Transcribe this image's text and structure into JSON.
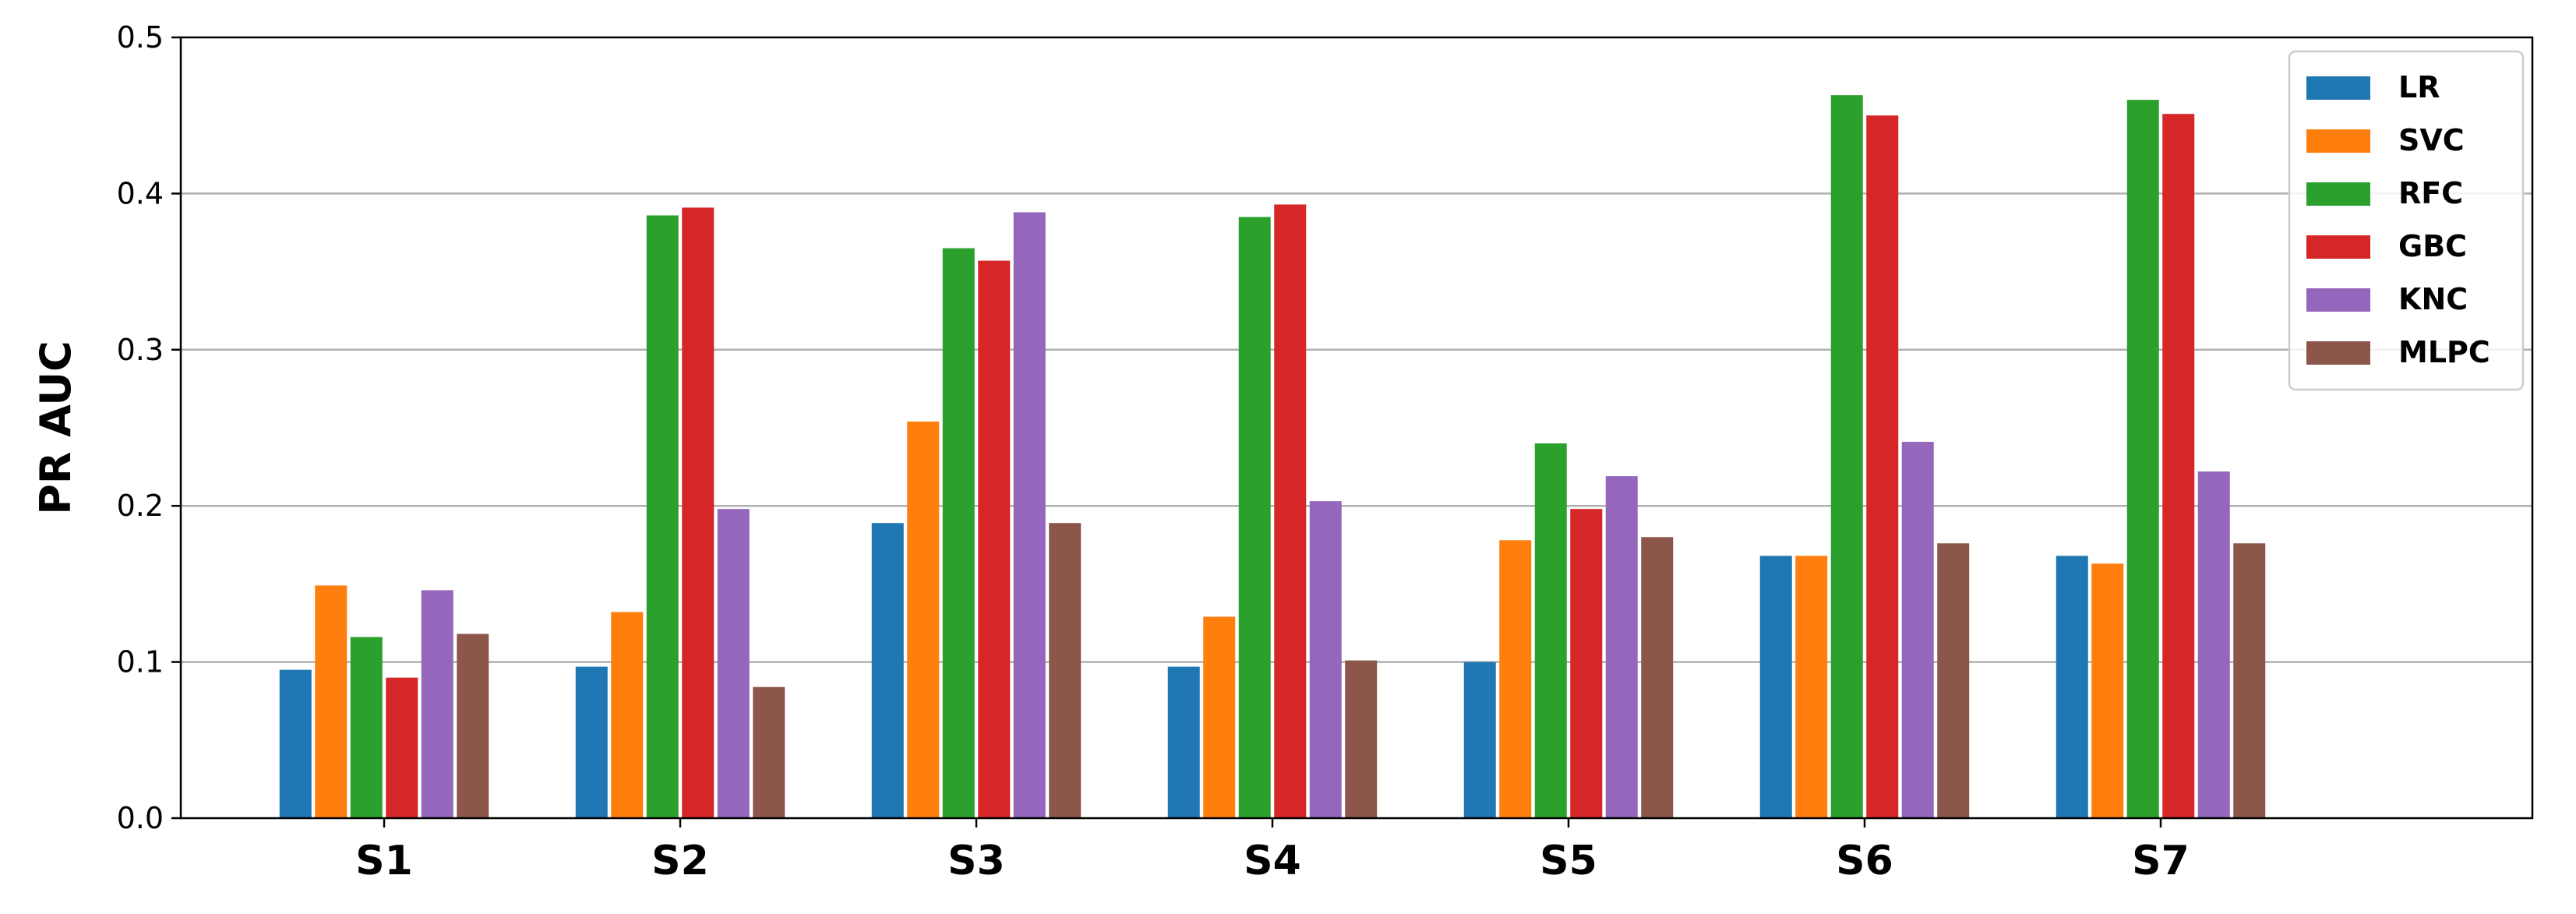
{
  "chart_data": {
    "type": "bar",
    "categories": [
      "S1",
      "S2",
      "S3",
      "S4",
      "S5",
      "S6",
      "S7"
    ],
    "series": [
      {
        "name": "LR",
        "color": "#1f77b4",
        "values": [
          0.095,
          0.097,
          0.189,
          0.097,
          0.1,
          0.168,
          0.168
        ]
      },
      {
        "name": "SVC",
        "color": "#ff7f0e",
        "values": [
          0.149,
          0.132,
          0.254,
          0.129,
          0.178,
          0.168,
          0.163
        ]
      },
      {
        "name": "RFC",
        "color": "#2ca02c",
        "values": [
          0.116,
          0.386,
          0.365,
          0.385,
          0.24,
          0.463,
          0.46
        ]
      },
      {
        "name": "GBC",
        "color": "#d62728",
        "values": [
          0.09,
          0.391,
          0.357,
          0.393,
          0.198,
          0.45,
          0.451
        ]
      },
      {
        "name": "KNC",
        "color": "#9467bd",
        "values": [
          0.146,
          0.198,
          0.388,
          0.203,
          0.219,
          0.241,
          0.222
        ]
      },
      {
        "name": "MLPC",
        "color": "#8c564b",
        "values": [
          0.118,
          0.084,
          0.189,
          0.101,
          0.18,
          0.176,
          0.176
        ]
      }
    ],
    "title": "",
    "xlabel": "",
    "ylabel": "PR AUC",
    "ylim": [
      0,
      0.5
    ],
    "yticks": [
      "0.0",
      "0.1",
      "0.2",
      "0.3",
      "0.4",
      "0.5"
    ],
    "grid": "horizontal",
    "legend_position": "top-right"
  }
}
